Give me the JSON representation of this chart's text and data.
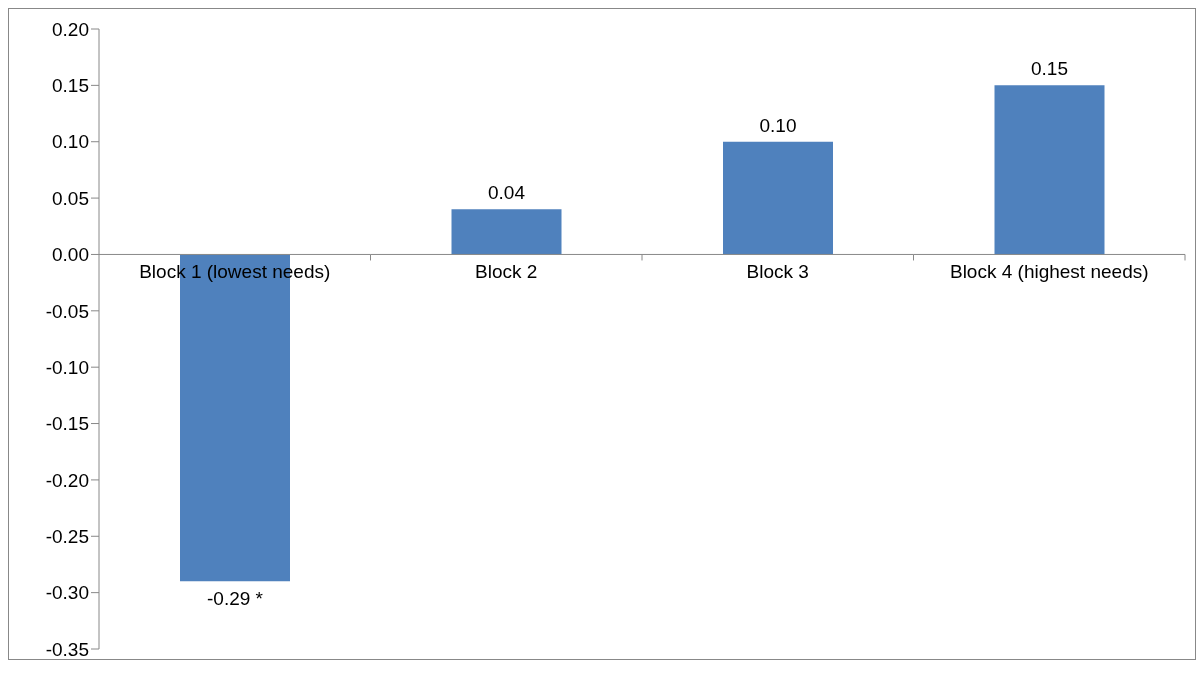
{
  "chart_data": {
    "type": "bar",
    "categories": [
      "Block 1 (lowest needs)",
      "Block 2",
      "Block 3",
      "Block 4 (highest needs)"
    ],
    "values": [
      -0.29,
      0.04,
      0.1,
      0.15
    ],
    "color": "#4f81bd",
    "value_labels": [
      "-0.29 *",
      "0.04",
      "0.10",
      "0.15"
    ],
    "ylim": [
      -0.35,
      0.2
    ],
    "yticks": [
      {
        "value": 0.2,
        "label": "0.20"
      },
      {
        "value": 0.15,
        "label": "0.15"
      },
      {
        "value": 0.1,
        "label": "0.10"
      },
      {
        "value": 0.05,
        "label": "0.05"
      },
      {
        "value": 0,
        "label": "0.00"
      },
      {
        "value": -0.05,
        "label": "-0.05"
      },
      {
        "value": -0.1,
        "label": "-0.10"
      },
      {
        "value": -0.15,
        "label": "-0.15"
      },
      {
        "value": -0.2,
        "label": "-0.20"
      },
      {
        "value": -0.25,
        "label": "-0.25"
      },
      {
        "value": -0.3,
        "label": "-0.30"
      },
      {
        "value": -0.35,
        "label": "-0.35"
      }
    ],
    "grid": false,
    "legend": false
  }
}
